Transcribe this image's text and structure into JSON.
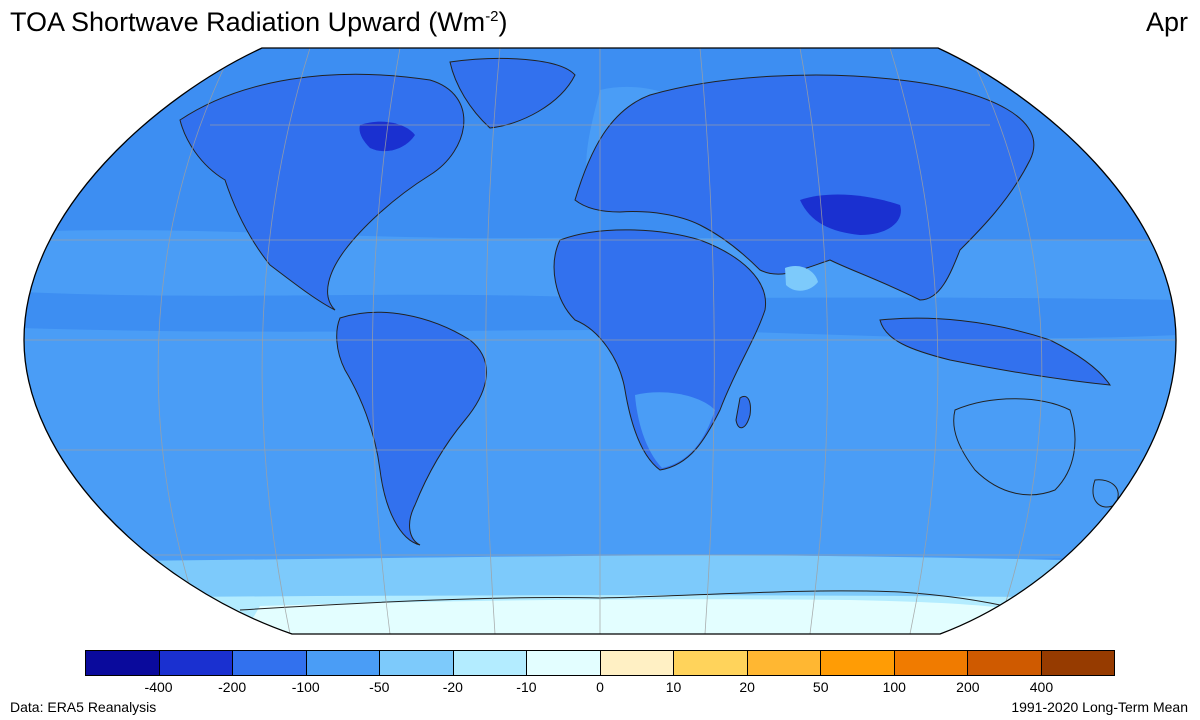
{
  "header": {
    "title_main": "TOA Shortwave Radiation Upward (Wm",
    "title_sup": "-2",
    "title_close": ")",
    "month": "Apr"
  },
  "map": {
    "ocean_color": "#3d8ef2",
    "band_colors": [
      "#0a0a9c",
      "#1a30d0",
      "#3271ee",
      "#4a9df6",
      "#7dcafb",
      "#b3ecff",
      "#e3feff",
      "#fff0c4",
      "#ffd35b",
      "#ffb732",
      "#ff9c05",
      "#f07b00",
      "#cf5a00",
      "#963b00"
    ]
  },
  "colorbar": {
    "colors": [
      "#0a0a9c",
      "#1a30d0",
      "#3271ee",
      "#4a9df6",
      "#7dcafb",
      "#b3ecff",
      "#e3feff",
      "#fff0c4",
      "#ffd35b",
      "#ffb732",
      "#ff9c05",
      "#f07b00",
      "#cf5a00",
      "#963b00"
    ],
    "tick_labels": [
      "-400",
      "-200",
      "-100",
      "-50",
      "-20",
      "-10",
      "0",
      "10",
      "20",
      "50",
      "100",
      "200",
      "400"
    ]
  },
  "footer": {
    "source": "Data: ERA5 Reanalysis",
    "period": "1991-2020 Long-Term Mean"
  }
}
